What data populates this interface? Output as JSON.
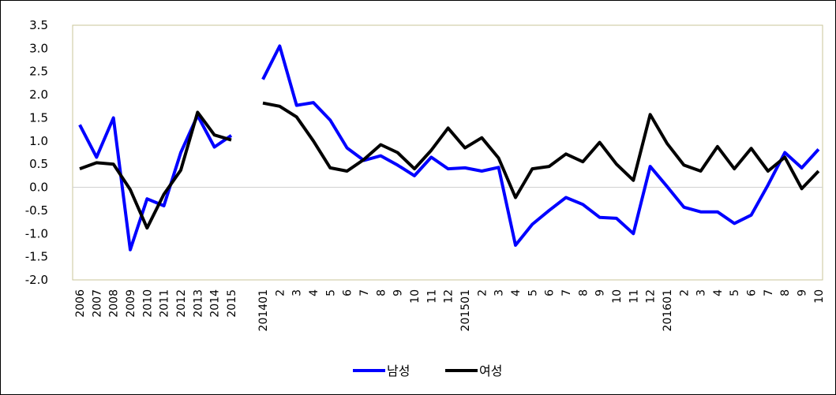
{
  "chart_data": {
    "type": "line",
    "title": "",
    "xlabel": "",
    "ylabel": "",
    "ylim": [
      -2.0,
      3.5
    ],
    "y_ticks": [
      "3.5",
      "3.0",
      "2.5",
      "2.0",
      "1.5",
      "1.0",
      "0.5",
      "0.0",
      "-0.5",
      "-1.0",
      "-1.5",
      "-2.0"
    ],
    "grid": false,
    "legend_position": "bottom",
    "segments": [
      {
        "categories": [
          "2006",
          "2007",
          "2008",
          "2009",
          "2010",
          "2011",
          "2012",
          "2013",
          "2014",
          "2015"
        ],
        "series": [
          {
            "name": "남성",
            "color": "#0000ff",
            "values": [
              1.35,
              0.65,
              1.5,
              -1.35,
              -0.25,
              -0.4,
              0.75,
              1.55,
              0.87,
              1.12
            ]
          },
          {
            "name": "여성",
            "color": "#000000",
            "values": [
              0.4,
              0.53,
              0.5,
              -0.05,
              -0.88,
              -0.15,
              0.37,
              1.62,
              1.13,
              1.02
            ]
          }
        ]
      },
      {
        "categories": [
          "201401",
          "2",
          "3",
          "4",
          "5",
          "6",
          "7",
          "8",
          "9",
          "10",
          "11",
          "12",
          "201501",
          "2",
          "3",
          "4",
          "5",
          "6",
          "7",
          "8",
          "9",
          "10",
          "11",
          "12",
          "201601",
          "2",
          "3",
          "4",
          "5",
          "6",
          "7",
          "8",
          "9",
          "10"
        ],
        "series": [
          {
            "name": "남성",
            "color": "#0000ff",
            "values": [
              2.33,
              3.05,
              1.77,
              1.83,
              1.45,
              0.85,
              0.58,
              0.68,
              0.48,
              0.25,
              0.65,
              0.4,
              0.42,
              0.35,
              0.43,
              -1.25,
              -0.8,
              -0.5,
              -0.22,
              -0.37,
              -0.65,
              -0.67,
              -1.0,
              0.45,
              0.02,
              -0.43,
              -0.53,
              -0.53,
              -0.78,
              -0.6,
              0.05,
              0.75,
              0.42,
              0.82
            ]
          },
          {
            "name": "여성",
            "color": "#000000",
            "values": [
              1.82,
              1.75,
              1.52,
              1.0,
              0.42,
              0.35,
              0.6,
              0.92,
              0.75,
              0.4,
              0.8,
              1.28,
              0.85,
              1.07,
              0.63,
              -0.22,
              0.4,
              0.45,
              0.72,
              0.55,
              0.97,
              0.5,
              0.15,
              1.57,
              0.95,
              0.48,
              0.35,
              0.88,
              0.4,
              0.84,
              0.35,
              0.65,
              -0.03,
              0.35
            ]
          }
        ]
      }
    ],
    "legend": [
      {
        "label": "남성",
        "color": "#0000ff"
      },
      {
        "label": "여성",
        "color": "#000000"
      }
    ]
  }
}
